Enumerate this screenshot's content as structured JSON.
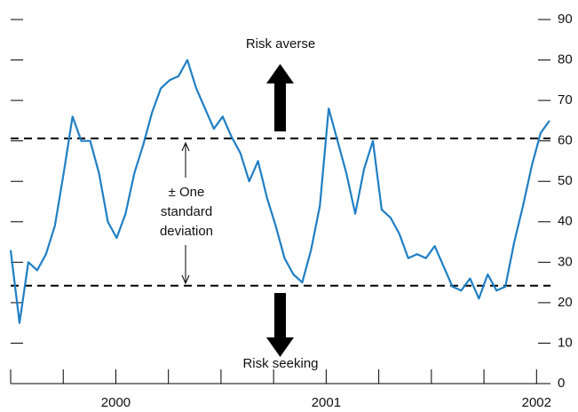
{
  "chart_data": {
    "type": "line",
    "annotations": [
      "Risk averse",
      "Risk seeking",
      "± One",
      "standard",
      "deviation"
    ],
    "reference_lines": [
      60.6,
      24.2
    ],
    "xlim": [
      2000,
      2002.6
    ],
    "xticks": [
      2000,
      2000.25,
      2000.5,
      2000.75,
      2001,
      2001.25,
      2001.5,
      2001.75,
      2002,
      2002.25,
      2002.5
    ],
    "xtick_labels": [
      {
        "value": 2000.5,
        "label": "2000"
      },
      {
        "value": 2001.5,
        "label": "2001"
      },
      {
        "value": 2002.5,
        "label": "2002"
      }
    ],
    "ylim": [
      0,
      90
    ],
    "yticks": [
      0,
      10,
      20,
      30,
      40,
      50,
      60,
      70,
      80,
      90
    ],
    "series": [
      {
        "color": "#1f7fc4",
        "x": [
          2000,
          2000.042,
          2000.084,
          2000.126,
          2000.168,
          2000.21,
          2000.252,
          2000.294,
          2000.336,
          2000.378,
          2000.42,
          2000.462,
          2000.504,
          2000.546,
          2000.588,
          2000.63,
          2000.672,
          2000.714,
          2000.756,
          2000.798,
          2000.84,
          2000.882,
          2000.924,
          2000.966,
          2001.008,
          2001.05,
          2001.092,
          2001.134,
          2001.176,
          2001.218,
          2001.26,
          2001.302,
          2001.344,
          2001.386,
          2001.428,
          2001.47,
          2001.512,
          2001.554,
          2001.596,
          2001.638,
          2001.68,
          2001.722,
          2001.764,
          2001.806,
          2001.848,
          2001.89,
          2001.932,
          2001.974,
          2002.016,
          2002.058,
          2002.1,
          2002.142,
          2002.184,
          2002.226,
          2002.268,
          2002.31,
          2002.352,
          2002.394,
          2002.436,
          2002.478,
          2002.52,
          2002.562
        ],
        "values": [
          33,
          15,
          30,
          28,
          32,
          39,
          52,
          66,
          60,
          60,
          52,
          40,
          36,
          42,
          52,
          59,
          67,
          73,
          75,
          76,
          80,
          73,
          68,
          63,
          66,
          61,
          57,
          50,
          55,
          46,
          39,
          31,
          27,
          25,
          33,
          44,
          68,
          60,
          52,
          42,
          53,
          60,
          43,
          41,
          37,
          31,
          32,
          31,
          34,
          29,
          24,
          23,
          26,
          21,
          27,
          23,
          24,
          35,
          44,
          54,
          62,
          65
        ]
      }
    ]
  }
}
